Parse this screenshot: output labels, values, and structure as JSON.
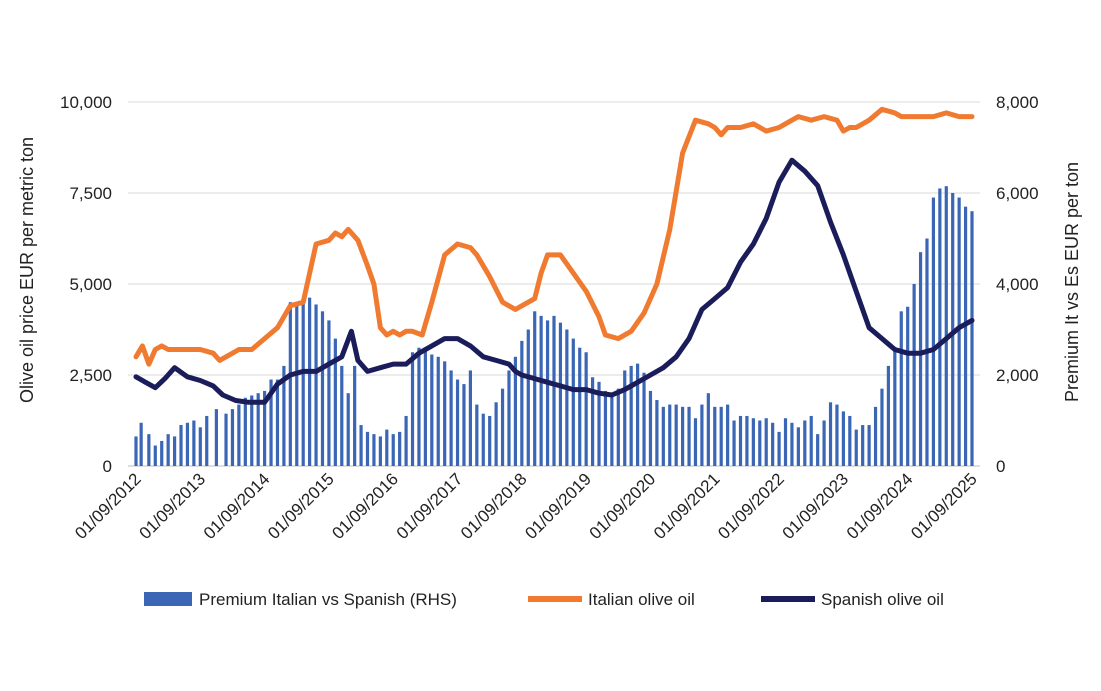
{
  "chart_data": {
    "type": "bar+line",
    "title": "",
    "ylabel_left": "Olive oil price EUR per metric ton",
    "ylabel_right": "Premium It vs Es EUR per ton",
    "ylim_left": [
      0,
      10000
    ],
    "ylim_right": [
      0,
      8000
    ],
    "yticks_left": [
      "0",
      "2,500",
      "5,000",
      "7,500",
      "10,000"
    ],
    "yticks_right": [
      "0",
      "2,000",
      "4,000",
      "6,000",
      "8,000"
    ],
    "x_tick_labels": [
      "01/09/2012",
      "01/09/2013",
      "01/09/2014",
      "01/09/2015",
      "01/09/2016",
      "01/09/2017",
      "01/09/2018",
      "01/09/2019",
      "01/09/2020",
      "01/09/2021",
      "01/09/2022",
      "01/09/2023",
      "01/09/2024",
      "01/09/2025"
    ],
    "grid": "horizontal",
    "legend_position": "bottom",
    "legend": [
      {
        "label": "Premium Italian vs Spanish (RHS)",
        "kind": "bar",
        "color": "#3a66b5"
      },
      {
        "label": "Italian olive oil",
        "kind": "line",
        "color": "#ef7a30"
      },
      {
        "label": "Spanish olive oil",
        "kind": "line",
        "color": "#1b1c5a"
      }
    ],
    "series": [
      {
        "name": "Premium Italian vs Spanish (RHS)",
        "axis": "right",
        "color": "#3a66b5",
        "t": [
          0,
          0.08,
          0.2,
          0.3,
          0.4,
          0.5,
          0.6,
          0.7,
          0.8,
          0.9,
          1,
          1.1,
          1.25,
          1.4,
          1.5,
          1.6,
          1.7,
          1.8,
          1.9,
          2,
          2.1,
          2.2,
          2.3,
          2.4,
          2.5,
          2.6,
          2.7,
          2.8,
          2.9,
          3,
          3.1,
          3.2,
          3.3,
          3.4,
          3.5,
          3.6,
          3.7,
          3.8,
          3.9,
          4,
          4.1,
          4.2,
          4.3,
          4.4,
          4.5,
          4.6,
          4.7,
          4.8,
          4.9,
          5,
          5.1,
          5.2,
          5.3,
          5.4,
          5.5,
          5.6,
          5.7,
          5.8,
          5.9,
          6,
          6.1,
          6.2,
          6.3,
          6.4,
          6.5,
          6.6,
          6.7,
          6.8,
          6.9,
          7,
          7.1,
          7.2,
          7.3,
          7.4,
          7.5,
          7.6,
          7.7,
          7.8,
          7.9,
          8,
          8.1,
          8.2,
          8.3,
          8.4,
          8.5,
          8.6,
          8.7,
          8.8,
          8.9,
          9,
          9.1,
          9.2,
          9.3,
          9.4,
          9.5,
          9.6,
          9.7,
          9.8,
          9.9,
          10,
          10.1,
          10.2,
          10.3,
          10.4,
          10.5,
          10.6,
          10.7,
          10.8,
          10.9,
          11,
          11.1,
          11.2,
          11.3,
          11.4,
          11.5,
          11.6,
          11.7,
          11.8,
          11.9,
          12,
          12.1,
          12.2,
          12.3,
          12.4,
          12.5,
          12.6,
          12.7,
          12.8,
          12.9,
          13
        ],
        "values": [
          650,
          950,
          700,
          450,
          550,
          700,
          650,
          900,
          950,
          1000,
          850,
          1100,
          1250,
          1150,
          1250,
          1350,
          1500,
          1550,
          1600,
          1650,
          1900,
          1900,
          2200,
          3600,
          3600,
          3650,
          3700,
          3550,
          3400,
          3200,
          2800,
          2200,
          1600,
          2200,
          900,
          750,
          700,
          650,
          800,
          700,
          750,
          1100,
          2500,
          2600,
          2550,
          2450,
          2400,
          2300,
          2100,
          1900,
          1800,
          2100,
          1350,
          1150,
          1100,
          1400,
          1700,
          2100,
          2400,
          2750,
          3000,
          3400,
          3300,
          3200,
          3300,
          3150,
          3000,
          2800,
          2600,
          2500,
          1950,
          1850,
          1650,
          1550,
          1700,
          2100,
          2200,
          2250,
          2050,
          1650,
          1450,
          1300,
          1350,
          1350,
          1300,
          1300,
          1050,
          1350,
          1600,
          1300,
          1300,
          1350,
          1000,
          1100,
          1100,
          1050,
          1000,
          1050,
          950,
          750,
          1050,
          950,
          850,
          1000,
          1100,
          700,
          1000,
          1400,
          1350,
          1200,
          1100,
          800,
          900,
          900,
          1300,
          1700,
          2200,
          2600,
          3400,
          3500,
          4000,
          4700,
          5000,
          5900,
          6100,
          6150,
          6000,
          5900,
          5700,
          5600
        ]
      },
      {
        "name": "Italian olive oil",
        "axis": "left",
        "color": "#ef7a30",
        "t": [
          0,
          0.1,
          0.2,
          0.3,
          0.4,
          0.5,
          0.7,
          1,
          1.2,
          1.3,
          1.5,
          1.6,
          1.8,
          2,
          2.2,
          2.4,
          2.6,
          2.8,
          3,
          3.1,
          3.2,
          3.3,
          3.45,
          3.6,
          3.7,
          3.8,
          3.9,
          4,
          4.1,
          4.2,
          4.3,
          4.45,
          4.6,
          4.8,
          5,
          5.2,
          5.3,
          5.5,
          5.7,
          5.9,
          6,
          6.1,
          6.2,
          6.3,
          6.4,
          6.6,
          6.8,
          7,
          7.2,
          7.3,
          7.5,
          7.7,
          7.9,
          8.1,
          8.3,
          8.5,
          8.7,
          8.9,
          9,
          9.1,
          9.2,
          9.4,
          9.6,
          9.8,
          10,
          10.1,
          10.3,
          10.5,
          10.7,
          10.9,
          11,
          11.1,
          11.2,
          11.4,
          11.6,
          11.8,
          11.9,
          12,
          12.2,
          12.4,
          12.6,
          12.8,
          13
        ],
        "values": [
          3000,
          3300,
          2800,
          3200,
          3300,
          3200,
          3200,
          3200,
          3100,
          2900,
          3100,
          3200,
          3200,
          3500,
          3800,
          4400,
          4500,
          6100,
          6200,
          6400,
          6300,
          6500,
          6200,
          5500,
          5000,
          3800,
          3600,
          3700,
          3600,
          3700,
          3700,
          3600,
          4500,
          5800,
          6100,
          6000,
          5800,
          5200,
          4500,
          4300,
          4400,
          4500,
          4600,
          5300,
          5800,
          5800,
          5300,
          4800,
          4100,
          3600,
          3500,
          3700,
          4200,
          5000,
          6500,
          8600,
          9500,
          9400,
          9300,
          9100,
          9300,
          9300,
          9400,
          9200,
          9300,
          9400,
          9600,
          9500,
          9600,
          9500,
          9200,
          9300,
          9300,
          9500,
          9800,
          9700,
          9600,
          9600,
          9600,
          9600,
          9700,
          9600,
          9600
        ]
      },
      {
        "name": "Spanish olive oil",
        "axis": "left",
        "color": "#1b1c5a",
        "t": [
          0,
          0.15,
          0.3,
          0.45,
          0.6,
          0.8,
          1,
          1.2,
          1.35,
          1.55,
          1.75,
          2,
          2.2,
          2.4,
          2.6,
          2.8,
          3,
          3.2,
          3.35,
          3.45,
          3.6,
          3.8,
          4,
          4.2,
          4.4,
          4.6,
          4.8,
          5,
          5.2,
          5.4,
          5.6,
          5.8,
          5.9,
          6,
          6.2,
          6.4,
          6.6,
          6.8,
          7,
          7.2,
          7.4,
          7.6,
          7.8,
          8,
          8.2,
          8.4,
          8.6,
          8.8,
          9,
          9.2,
          9.4,
          9.6,
          9.8,
          10,
          10.2,
          10.4,
          10.6,
          10.8,
          11,
          11.2,
          11.4,
          11.6,
          11.8,
          12,
          12.2,
          12.4,
          12.6,
          12.8,
          13
        ],
        "values": [
          2450,
          2300,
          2150,
          2400,
          2700,
          2450,
          2350,
          2200,
          1950,
          1800,
          1750,
          1750,
          2250,
          2500,
          2600,
          2600,
          2800,
          3000,
          3700,
          2900,
          2600,
          2700,
          2800,
          2800,
          3100,
          3300,
          3500,
          3500,
          3300,
          3000,
          2900,
          2800,
          2600,
          2500,
          2400,
          2300,
          2200,
          2100,
          2100,
          2000,
          1950,
          2100,
          2300,
          2500,
          2700,
          3000,
          3500,
          4300,
          4600,
          4900,
          5600,
          6100,
          6800,
          7800,
          8400,
          8100,
          7700,
          6700,
          5800,
          4800,
          3800,
          3500,
          3200,
          3100,
          3100,
          3200,
          3500,
          3800,
          4000
        ]
      }
    ]
  }
}
